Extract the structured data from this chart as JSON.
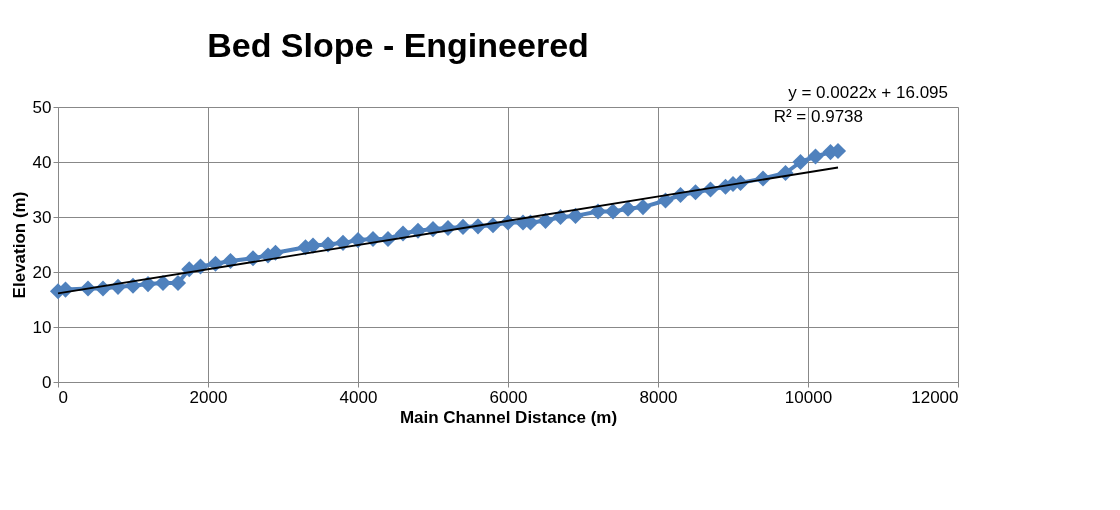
{
  "chart_data": {
    "type": "line",
    "title": "Bed Slope - Engineered",
    "xlabel": "Main Channel Distance (m)",
    "ylabel": "Elevation (m)",
    "xlim": [
      0,
      12000
    ],
    "xticks": [
      0,
      2000,
      4000,
      6000,
      8000,
      10000,
      12000
    ],
    "ylim": [
      0,
      50
    ],
    "yticks": [
      0,
      10,
      20,
      30,
      40,
      50
    ],
    "grid": true,
    "annotations": [
      "y = 0.0022x + 16.095",
      "R² = 0.9738"
    ],
    "series": [
      {
        "color": "#4f81bd",
        "marker": "diamond",
        "line_style": "solid",
        "x": [
          0,
          100,
          400,
          600,
          800,
          1000,
          1200,
          1400,
          1600,
          1750,
          1900,
          2100,
          2300,
          2600,
          2800,
          2900,
          3300,
          3400,
          3600,
          3800,
          4000,
          4200,
          4400,
          4600,
          4800,
          5000,
          5200,
          5400,
          5600,
          5800,
          6000,
          6200,
          6300,
          6500,
          6700,
          6900,
          7200,
          7400,
          7600,
          7800,
          8100,
          8300,
          8500,
          8700,
          8900,
          9000,
          9100,
          9400,
          9700,
          9900,
          10100,
          10300,
          10400
        ],
        "values": [
          16.5,
          16.8,
          17,
          17,
          17.3,
          17.5,
          17.8,
          18,
          18,
          20.5,
          21,
          21.5,
          22,
          22.5,
          23,
          23.5,
          24.5,
          24.8,
          25,
          25.3,
          25.8,
          26,
          26,
          27,
          27.5,
          27.8,
          28,
          28.2,
          28.3,
          28.5,
          29,
          29,
          29,
          29.3,
          30,
          30.2,
          31,
          31,
          31.5,
          31.8,
          33,
          34,
          34.5,
          35,
          35.5,
          36,
          36.2,
          37,
          38,
          40,
          41,
          41.8,
          42
        ]
      },
      {
        "color": "#000000",
        "marker": "none",
        "line_style": "solid",
        "x": [
          0,
          10400
        ],
        "values": [
          16.1,
          39
        ]
      }
    ]
  }
}
